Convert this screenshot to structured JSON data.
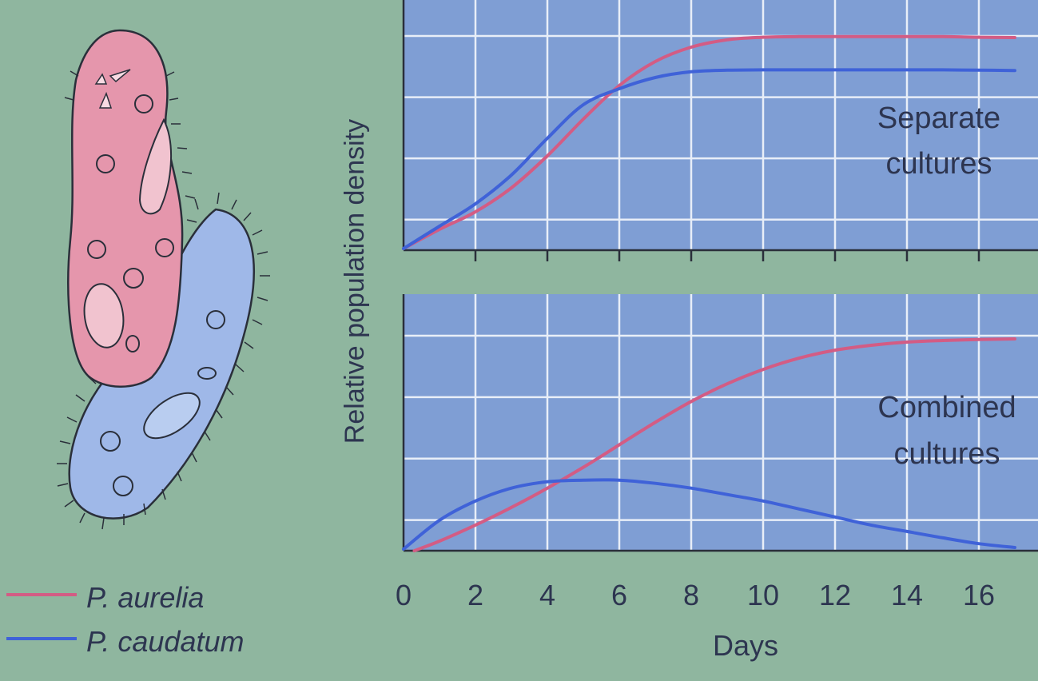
{
  "colors": {
    "background": "#8fb69f",
    "plot_background": "#7f9ed4",
    "grid": "#e8eef8",
    "axis": "#2a2f3a",
    "aurelia": "#d35c84",
    "caudatum": "#3f62d8",
    "aurelia_fill": "#e596ac",
    "caudatum_fill": "#9fb8e8",
    "text": "#2d3550"
  },
  "legend": {
    "items": [
      {
        "label": "P. aurelia",
        "color": "#d35c84"
      },
      {
        "label": "P. caudatum",
        "color": "#3f62d8"
      }
    ]
  },
  "illustration": {
    "aurelia_icon": "paramecium-aurelia-icon",
    "caudatum_icon": "paramecium-caudatum-icon"
  },
  "chart_data": [
    {
      "type": "line",
      "annotation": [
        "Separate",
        "cultures"
      ],
      "xlabel": "Days",
      "ylabel": "Relative population density",
      "xlim": [
        0,
        18
      ],
      "ylim": [
        0,
        7
      ],
      "grid": true,
      "series": [
        {
          "name": "P. aurelia",
          "color": "#d35c84",
          "x": [
            0,
            1,
            2,
            3,
            4,
            5,
            6,
            7,
            8,
            9,
            10,
            11,
            12,
            13,
            14,
            15,
            16,
            17
          ],
          "y": [
            0.05,
            0.65,
            1.2,
            1.95,
            2.95,
            4.1,
            5.15,
            5.9,
            6.35,
            6.58,
            6.66,
            6.68,
            6.68,
            6.68,
            6.68,
            6.68,
            6.66,
            6.65
          ]
        },
        {
          "name": "P. caudatum",
          "color": "#3f62d8",
          "x": [
            0,
            1,
            2,
            3,
            4,
            5,
            6,
            7,
            8,
            9,
            10,
            11,
            12,
            13,
            14,
            15,
            16,
            17
          ],
          "y": [
            0.05,
            0.75,
            1.45,
            2.35,
            3.5,
            4.55,
            5.05,
            5.4,
            5.58,
            5.63,
            5.64,
            5.64,
            5.64,
            5.64,
            5.64,
            5.64,
            5.63,
            5.62
          ]
        }
      ]
    },
    {
      "type": "line",
      "annotation": [
        "Combined",
        "cultures"
      ],
      "xlabel": "Days",
      "ylabel": "Relative population density",
      "xticks": [
        0,
        2,
        4,
        6,
        8,
        10,
        12,
        14,
        16
      ],
      "xlim": [
        0,
        18
      ],
      "ylim": [
        0,
        7
      ],
      "grid": true,
      "series": [
        {
          "name": "P. aurelia",
          "color": "#d35c84",
          "x": [
            0.3,
            1,
            2,
            3,
            4,
            5,
            6,
            7,
            8,
            9,
            10,
            11,
            12,
            13,
            14,
            15,
            16,
            17
          ],
          "y": [
            0.0,
            0.3,
            0.8,
            1.35,
            1.95,
            2.6,
            3.3,
            4.0,
            4.65,
            5.2,
            5.65,
            6.0,
            6.25,
            6.4,
            6.5,
            6.55,
            6.58,
            6.6
          ]
        },
        {
          "name": "P. caudatum",
          "color": "#3f62d8",
          "x": [
            0,
            1,
            2,
            3,
            4,
            5,
            6,
            7,
            8,
            9,
            10,
            11,
            12,
            13,
            14,
            15,
            16,
            17
          ],
          "y": [
            0.05,
            0.95,
            1.55,
            1.95,
            2.15,
            2.2,
            2.2,
            2.1,
            1.95,
            1.75,
            1.55,
            1.3,
            1.05,
            0.8,
            0.6,
            0.4,
            0.22,
            0.1
          ]
        }
      ]
    }
  ]
}
